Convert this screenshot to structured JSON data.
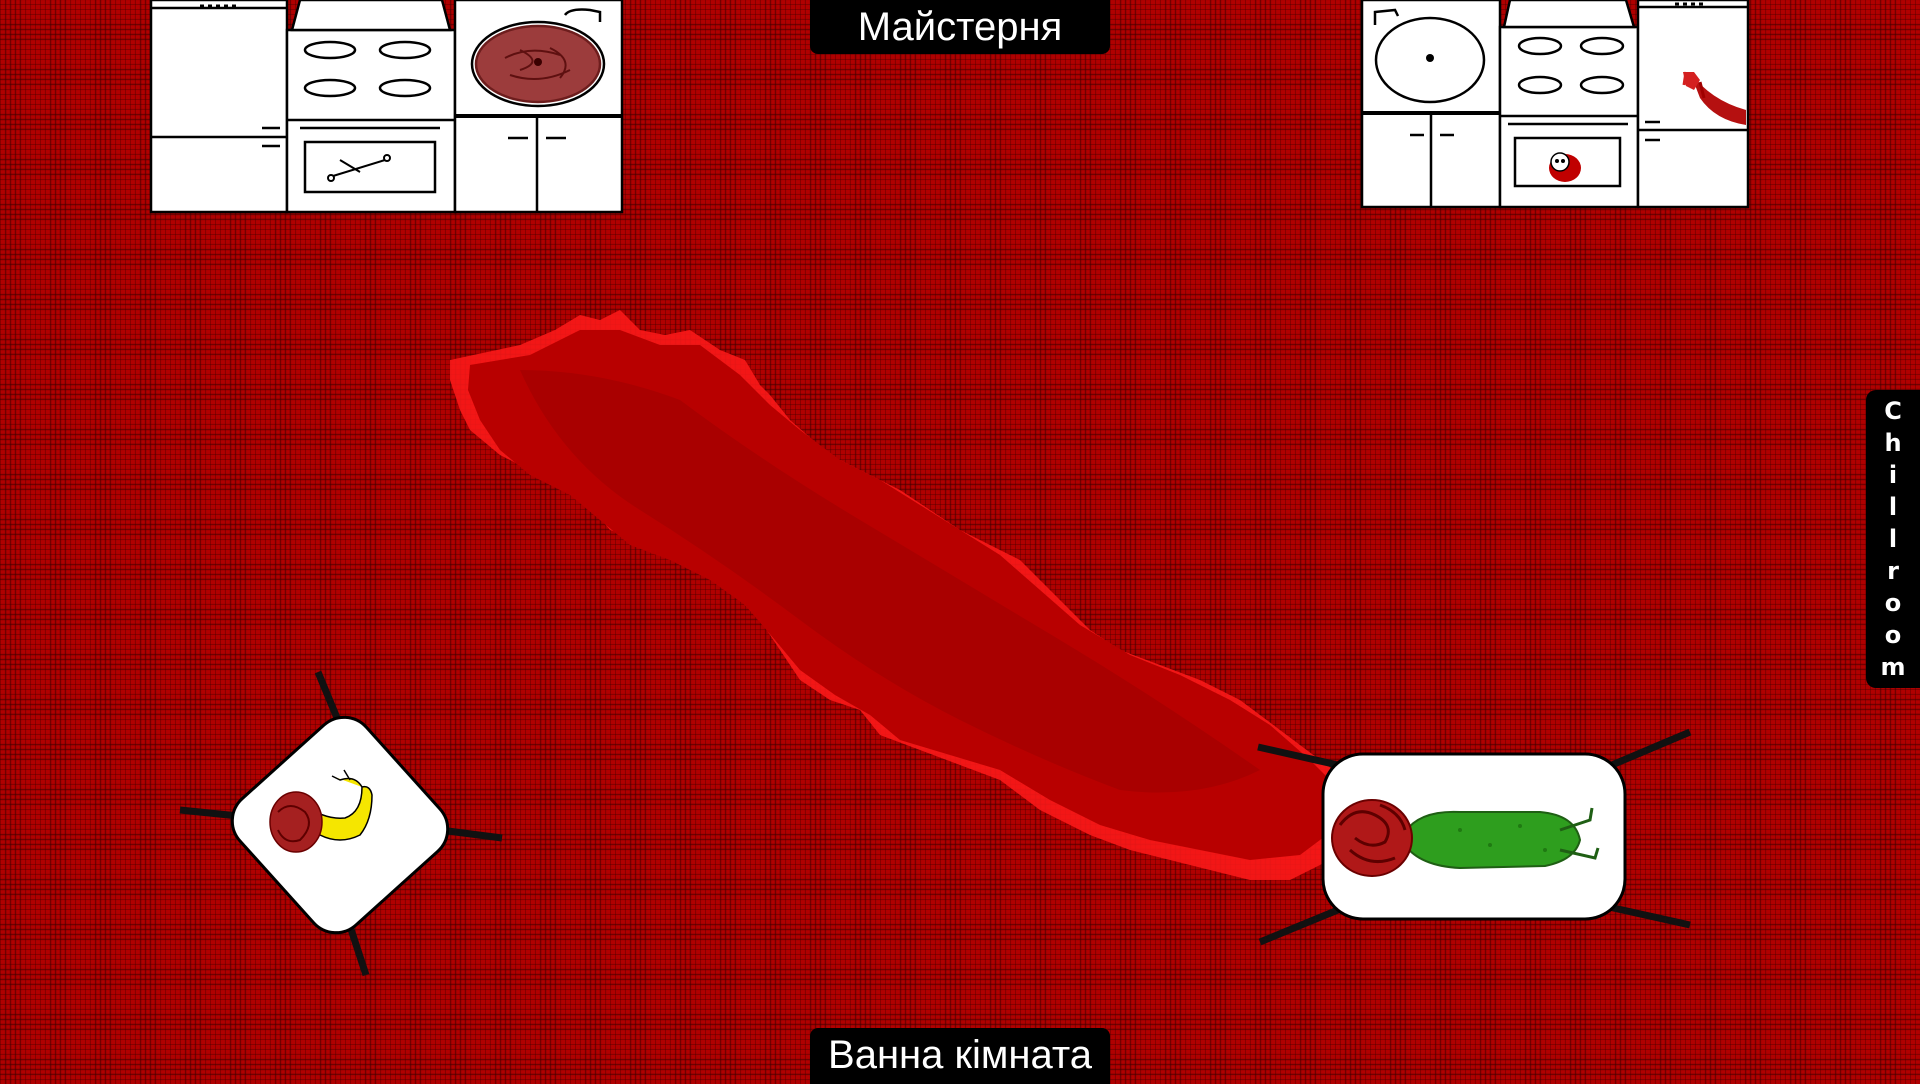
{
  "doors": {
    "top": "Майстерня",
    "bottom": "Ванна кімната",
    "right": "Chillroom"
  },
  "colors": {
    "floor": "#b00000",
    "grid": "#3c0000",
    "blood": "#c80000",
    "blood_bright": "#ff1a1a",
    "sign_bg": "#000000",
    "sign_text": "#ffffff",
    "furniture": "#ffffff",
    "figure_green": "#2e9e1e",
    "figure_yellow": "#f5e600"
  },
  "scene": {
    "left_kitchen": [
      "fridge",
      "stove-with-oven",
      "cabinet-with-meat-pan"
    ],
    "right_kitchen": [
      "cabinet-with-sink",
      "stove-with-oven",
      "fridge-with-bloody-hand"
    ],
    "floor_objects": [
      "blood-trail",
      "small-bed-yellow-creature",
      "large-bed-green-creature"
    ]
  }
}
